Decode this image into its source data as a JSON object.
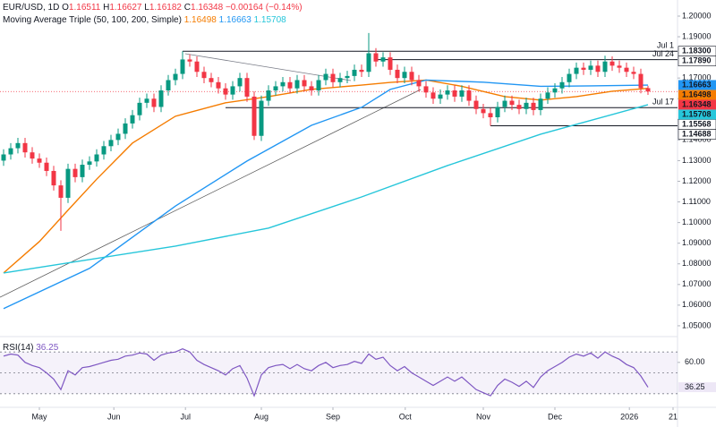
{
  "chart_data": {
    "type": "candlestick",
    "header": {
      "symbol": "EUR/USD, 1D",
      "ohlc": [
        {
          "label": "O",
          "value": 1.16511
        },
        {
          "label": "H",
          "value": 1.16627
        },
        {
          "label": "L",
          "value": 1.16182
        },
        {
          "label": "C",
          "value": 1.16348
        }
      ],
      "change": "−0.00164 (−0.14%)",
      "indicator": "Moving Average Triple (50, 100, 200, Simple)"
    },
    "up_color": "#089981",
    "down_color": "#f23645",
    "candles": {
      "open": [
        1.13,
        1.133,
        1.136,
        1.1385,
        1.134,
        1.131,
        1.129,
        1.125,
        1.118,
        1.112,
        1.126,
        1.122,
        1.128,
        1.1296,
        1.133,
        1.137,
        1.14,
        1.143,
        1.148,
        1.152,
        1.158,
        1.16,
        1.156,
        1.164,
        1.169,
        1.172,
        1.179,
        1.178,
        1.173,
        1.17,
        1.168,
        1.165,
        1.162,
        1.166,
        1.17,
        1.161,
        1.142,
        1.159,
        1.164,
        1.166,
        1.168,
        1.165,
        1.169,
        1.166,
        1.164,
        1.169,
        1.172,
        1.168,
        1.17,
        1.171,
        1.174,
        1.173,
        1.182,
        1.178,
        1.18,
        1.174,
        1.17,
        1.173,
        1.169,
        1.166,
        1.163,
        1.16,
        1.162,
        1.164,
        1.161,
        1.164,
        1.159,
        1.155,
        1.153,
        1.151,
        1.156,
        1.159,
        1.157,
        1.155,
        1.158,
        1.1545,
        1.16,
        1.163,
        1.165,
        1.168,
        1.172,
        1.175,
        1.174,
        1.176,
        1.173,
        1.178,
        1.176,
        1.175,
        1.173,
        1.172,
        1.16511
      ],
      "high": [
        1.1355,
        1.1385,
        1.141,
        1.141,
        1.1365,
        1.1335,
        1.1315,
        1.1275,
        1.1205,
        1.1285,
        1.1285,
        1.1305,
        1.1321,
        1.1355,
        1.1395,
        1.1425,
        1.1455,
        1.1505,
        1.1545,
        1.1605,
        1.1625,
        1.1625,
        1.1665,
        1.1715,
        1.1745,
        1.183,
        1.1815,
        1.1805,
        1.1755,
        1.1725,
        1.1705,
        1.1675,
        1.1685,
        1.1725,
        1.1725,
        1.1635,
        1.1615,
        1.1665,
        1.1685,
        1.1705,
        1.1705,
        1.1715,
        1.1715,
        1.1685,
        1.1715,
        1.1745,
        1.1745,
        1.1725,
        1.1735,
        1.1765,
        1.1765,
        1.1918,
        1.1845,
        1.1825,
        1.1825,
        1.1765,
        1.1755,
        1.1755,
        1.1715,
        1.1685,
        1.1655,
        1.1645,
        1.1665,
        1.1665,
        1.1665,
        1.1665,
        1.1615,
        1.1575,
        1.1555,
        1.1585,
        1.1615,
        1.1615,
        1.1595,
        1.1605,
        1.1605,
        1.1625,
        1.1655,
        1.1675,
        1.1705,
        1.1745,
        1.1775,
        1.1775,
        1.1785,
        1.1785,
        1.1808,
        1.1805,
        1.1785,
        1.1775,
        1.1755,
        1.1745,
        1.16627
      ],
      "low": [
        1.1275,
        1.1305,
        1.1335,
        1.1315,
        1.1285,
        1.1265,
        1.1225,
        1.1155,
        1.096,
        1.1095,
        1.1195,
        1.1195,
        1.1255,
        1.1271,
        1.1305,
        1.1345,
        1.1375,
        1.1405,
        1.1455,
        1.1495,
        1.1555,
        1.1535,
        1.1535,
        1.1615,
        1.1665,
        1.1695,
        1.1755,
        1.1705,
        1.1675,
        1.1655,
        1.1625,
        1.1595,
        1.1595,
        1.1635,
        1.1585,
        1.14,
        1.1395,
        1.1565,
        1.1615,
        1.1635,
        1.1625,
        1.1625,
        1.1635,
        1.1615,
        1.1615,
        1.1665,
        1.1655,
        1.1655,
        1.1675,
        1.1685,
        1.1705,
        1.1705,
        1.1755,
        1.1755,
        1.1715,
        1.1675,
        1.1675,
        1.1665,
        1.1635,
        1.1605,
        1.1575,
        1.1575,
        1.1595,
        1.1585,
        1.1585,
        1.1565,
        1.1525,
        1.1505,
        1.1469,
        1.1485,
        1.1535,
        1.1545,
        1.1525,
        1.1525,
        1.152,
        1.152,
        1.1575,
        1.1605,
        1.1625,
        1.1655,
        1.1695,
        1.1715,
        1.1715,
        1.1705,
        1.1705,
        1.1735,
        1.1725,
        1.1705,
        1.1695,
        1.1626,
        1.16182
      ],
      "close": [
        1.133,
        1.136,
        1.1385,
        1.134,
        1.131,
        1.129,
        1.125,
        1.118,
        1.112,
        1.126,
        1.122,
        1.128,
        1.1296,
        1.133,
        1.137,
        1.14,
        1.143,
        1.148,
        1.152,
        1.158,
        1.16,
        1.156,
        1.164,
        1.169,
        1.172,
        1.179,
        1.178,
        1.173,
        1.17,
        1.168,
        1.165,
        1.162,
        1.166,
        1.17,
        1.161,
        1.142,
        1.159,
        1.164,
        1.166,
        1.168,
        1.165,
        1.169,
        1.166,
        1.164,
        1.169,
        1.172,
        1.168,
        1.17,
        1.171,
        1.174,
        1.173,
        1.182,
        1.178,
        1.18,
        1.174,
        1.17,
        1.173,
        1.169,
        1.166,
        1.163,
        1.16,
        1.162,
        1.164,
        1.161,
        1.164,
        1.159,
        1.155,
        1.153,
        1.151,
        1.156,
        1.159,
        1.157,
        1.155,
        1.158,
        1.1545,
        1.16,
        1.163,
        1.165,
        1.168,
        1.172,
        1.175,
        1.174,
        1.176,
        1.173,
        1.178,
        1.176,
        1.175,
        1.173,
        1.172,
        1.1651,
        1.16348
      ]
    },
    "moving_averages": [
      {
        "color": "#f57c00",
        "value": 1.16498,
        "x": [
          0,
          5,
          9,
          13,
          18,
          24,
          31,
          37,
          43,
          50,
          54,
          59,
          64,
          70,
          75,
          80,
          85,
          90
        ],
        "values": [
          1.0756,
          1.0908,
          1.106,
          1.121,
          1.1385,
          1.1515,
          1.158,
          1.161,
          1.1645,
          1.1666,
          1.1679,
          1.169,
          1.166,
          1.161,
          1.1593,
          1.161,
          1.1636,
          1.165
        ]
      },
      {
        "color": "#2196f3",
        "value": 1.16663,
        "x": [
          0,
          12,
          24,
          34,
          43,
          50,
          54,
          59,
          67,
          75,
          82,
          90
        ],
        "values": [
          1.0583,
          1.0778,
          1.108,
          1.1298,
          1.1471,
          1.1558,
          1.1645,
          1.169,
          1.168,
          1.166,
          1.1662,
          1.1666
        ]
      },
      {
        "color": "#26c6da",
        "value": 1.15708,
        "x": [
          0,
          12,
          24,
          37,
          50,
          62,
          75,
          90
        ],
        "values": [
          1.0756,
          1.0821,
          1.0886,
          1.0973,
          1.1124,
          1.1276,
          1.1428,
          1.15708
        ]
      }
    ],
    "levels": [
      {
        "value": 1.183,
        "label": "1.18300",
        "from": 25,
        "note": "Jul 1"
      },
      {
        "value": 1.1789,
        "label": "1.17890",
        "from": 52,
        "note": "Jul 24"
      },
      {
        "value": 1.15568,
        "from": 31,
        "note": "Jul 17"
      },
      {
        "value": 1.14688,
        "from": 68
      }
    ],
    "ylim": [
      1.0452,
      1.2078
    ],
    "yticks": [
      {
        "value": 1.05,
        "label": "1.05000"
      },
      {
        "value": 1.06,
        "label": "1.06000"
      },
      {
        "value": 1.07,
        "label": "1.07000"
      },
      {
        "value": 1.08,
        "label": "1.08000"
      },
      {
        "value": 1.09,
        "label": "1.09000"
      },
      {
        "value": 1.1,
        "label": "1.10000"
      },
      {
        "value": 1.11,
        "label": "1.11000"
      },
      {
        "value": 1.12,
        "label": "1.12000"
      },
      {
        "value": 1.13,
        "label": "1.13000"
      },
      {
        "value": 1.14,
        "label": "1.14000"
      },
      {
        "value": 1.15,
        "label": "1.15000"
      },
      {
        "value": 1.16,
        "label": "1.16000"
      },
      {
        "value": 1.17,
        "label": "1.17000"
      },
      {
        "value": 1.18,
        "label": "1.18000"
      },
      {
        "value": 1.19,
        "label": "1.19000"
      },
      {
        "value": 1.2,
        "label": "1.20000"
      }
    ],
    "xticks": [
      {
        "value": 5,
        "label": "May"
      },
      {
        "value": 15.4,
        "label": "Jun"
      },
      {
        "value": 25.4,
        "label": "Jul"
      },
      {
        "value": 36,
        "label": "Aug"
      },
      {
        "value": 46,
        "label": "Sep"
      },
      {
        "value": 56.1,
        "label": "Oct"
      },
      {
        "value": 67,
        "label": "Nov"
      },
      {
        "value": 77,
        "label": "Dec"
      },
      {
        "value": 87.4,
        "label": "2026"
      },
      {
        "value": 93.5,
        "label": "21"
      }
    ],
    "rsi": {
      "title": "RSI(14)",
      "color": "#7e57c2",
      "last": 36.25,
      "ylim": [
        17,
        83
      ],
      "yticks": [
        {
          "value": 60,
          "label": "60.00"
        }
      ],
      "levels": [
        70,
        50,
        30
      ],
      "values": [
        66,
        68,
        67,
        60,
        57,
        55,
        50,
        44,
        34,
        52,
        48,
        55,
        56,
        58,
        60,
        62,
        63,
        66,
        67,
        69,
        68,
        62,
        67,
        69,
        70,
        73,
        70,
        62,
        58,
        55,
        52,
        48,
        54,
        57,
        45,
        28,
        48,
        55,
        57,
        58,
        54,
        58,
        54,
        52,
        57,
        60,
        55,
        57,
        58,
        61,
        59,
        68,
        63,
        65,
        57,
        52,
        56,
        50,
        46,
        42,
        38,
        42,
        46,
        42,
        46,
        40,
        34,
        31,
        28,
        38,
        44,
        41,
        37,
        42,
        36,
        46,
        52,
        56,
        60,
        65,
        68,
        66,
        69,
        64,
        70,
        66,
        63,
        58,
        55,
        47,
        36.25
      ]
    }
  }
}
